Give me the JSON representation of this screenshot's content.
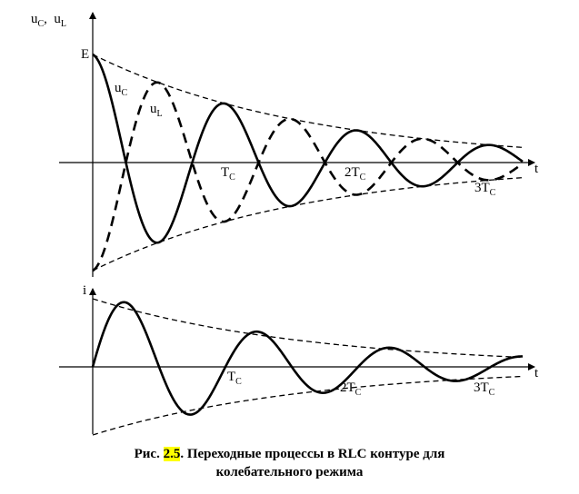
{
  "top_plot": {
    "y_axis_label": {
      "main": "u",
      "sub1": "C",
      "sep": ",  ",
      "main2": "u",
      "sub2": "L"
    },
    "e_label": "E",
    "uc_label": {
      "main": "u",
      "sub": "C"
    },
    "ul_label": {
      "main": "u",
      "sub": "L"
    },
    "x_axis_label": "t",
    "ticks": [
      {
        "main": "T",
        "sub": "C"
      },
      {
        "main": "2T",
        "sub": "C"
      },
      {
        "main": "3T",
        "sub": "C"
      }
    ]
  },
  "bottom_plot": {
    "y_axis_label": "i",
    "x_axis_label": "t",
    "ticks": [
      {
        "main": "T",
        "sub": "C"
      },
      {
        "main": "2T",
        "sub": "C"
      },
      {
        "main": "3T",
        "sub": "C"
      }
    ]
  },
  "caption": {
    "prefix": "Рис. ",
    "number": "2.5",
    "line1_rest": ". Переходные процессы в RLC контуре для",
    "line2": "колебательного режима"
  }
}
